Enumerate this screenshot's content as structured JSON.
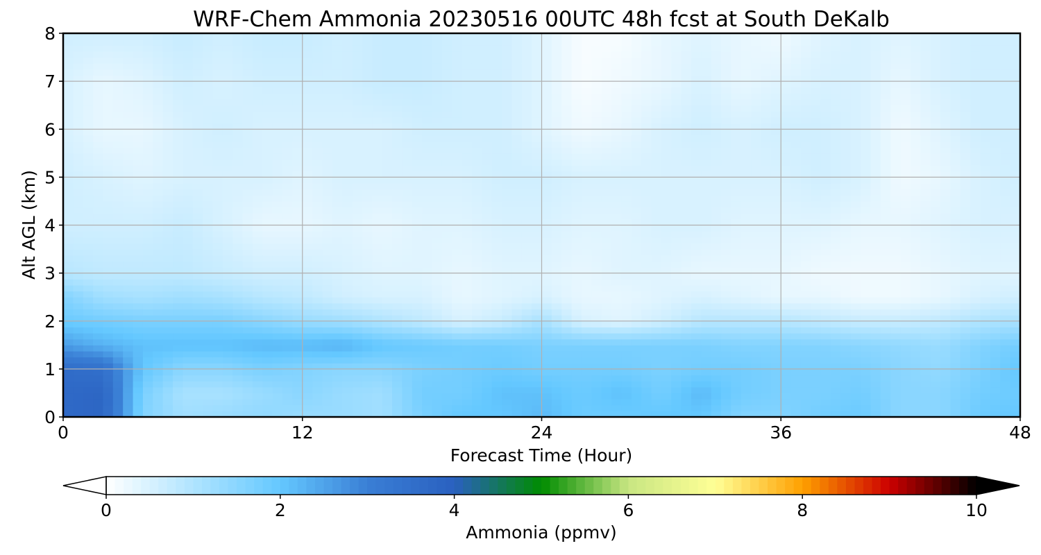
{
  "chart_data": {
    "type": "heatmap",
    "title": "WRF-Chem Ammonia  20230516 00UTC 48h fcst at South DeKalb",
    "xlabel": "Forecast Time (Hour)",
    "ylabel": "Alt AGL (km)",
    "xlim": [
      0,
      48
    ],
    "ylim": [
      0,
      8
    ],
    "xticks": [
      0,
      12,
      24,
      36,
      48
    ],
    "yticks": [
      0,
      1,
      2,
      3,
      4,
      5,
      6,
      7,
      8
    ],
    "grid": true,
    "x": [
      0,
      2,
      4,
      6,
      8,
      10,
      12,
      14,
      16,
      18,
      20,
      22,
      24,
      26,
      28,
      30,
      32,
      34,
      36,
      38,
      40,
      42,
      44,
      46,
      48
    ],
    "y": [
      0,
      0.5,
      1,
      1.5,
      2,
      2.5,
      3,
      4,
      5,
      6,
      7,
      8
    ],
    "z": [
      [
        3.7,
        3.8,
        1.6,
        1.2,
        1.3,
        1.4,
        1.3,
        1.3,
        1.2,
        1.7,
        2.0,
        2.0,
        2.2,
        1.9,
        1.9,
        2.0,
        2.0,
        1.6,
        1.6,
        1.8,
        1.9,
        1.5,
        1.5,
        1.9,
        2.0
      ],
      [
        3.7,
        3.8,
        1.7,
        1.1,
        1.1,
        1.3,
        1.5,
        1.3,
        1.2,
        1.8,
        1.8,
        2.1,
        2.1,
        1.9,
        2.1,
        1.8,
        2.2,
        1.8,
        1.7,
        1.7,
        1.8,
        1.5,
        1.5,
        1.8,
        1.9
      ],
      [
        3.6,
        3.5,
        2.0,
        1.5,
        1.5,
        1.7,
        1.6,
        1.5,
        1.5,
        1.7,
        1.8,
        1.9,
        1.8,
        1.8,
        1.8,
        1.7,
        1.8,
        1.8,
        1.7,
        1.7,
        1.7,
        1.5,
        1.4,
        1.7,
        2.0
      ],
      [
        2.6,
        2.3,
        2.1,
        2.1,
        2.1,
        2.2,
        2.2,
        2.3,
        2.0,
        1.9,
        1.8,
        1.8,
        1.7,
        1.7,
        1.7,
        1.7,
        1.7,
        1.6,
        1.6,
        1.6,
        1.5,
        1.4,
        1.3,
        1.6,
        1.8
      ],
      [
        1.9,
        1.8,
        1.7,
        1.7,
        1.7,
        1.5,
        1.3,
        1.2,
        1.0,
        0.8,
        0.5,
        0.7,
        1.1,
        0.5,
        0.4,
        0.6,
        0.9,
        0.9,
        0.9,
        0.8,
        0.7,
        0.7,
        0.8,
        1.0,
        1.1
      ],
      [
        1.6,
        1.2,
        1.1,
        1.2,
        1.1,
        0.9,
        0.8,
        0.6,
        0.5,
        0.5,
        0.3,
        0.4,
        0.5,
        0.3,
        0.3,
        0.4,
        0.5,
        0.4,
        0.3,
        0.3,
        0.2,
        0.2,
        0.3,
        0.5,
        0.6
      ],
      [
        0.9,
        0.8,
        0.8,
        0.8,
        0.7,
        0.6,
        0.6,
        0.5,
        0.4,
        0.4,
        0.3,
        0.4,
        0.4,
        0.3,
        0.4,
        0.4,
        0.3,
        0.3,
        0.3,
        0.2,
        0.2,
        0.2,
        0.3,
        0.4,
        0.4
      ],
      [
        0.6,
        0.6,
        0.6,
        0.7,
        0.5,
        0.3,
        0.3,
        0.4,
        0.3,
        0.4,
        0.4,
        0.5,
        0.5,
        0.4,
        0.4,
        0.5,
        0.5,
        0.4,
        0.4,
        0.4,
        0.3,
        0.3,
        0.4,
        0.5,
        0.5
      ],
      [
        0.6,
        0.5,
        0.4,
        0.5,
        0.5,
        0.5,
        0.4,
        0.5,
        0.5,
        0.5,
        0.5,
        0.6,
        0.6,
        0.5,
        0.5,
        0.5,
        0.5,
        0.5,
        0.5,
        0.6,
        0.5,
        0.2,
        0.3,
        0.5,
        0.6
      ],
      [
        0.5,
        0.3,
        0.3,
        0.5,
        0.6,
        0.5,
        0.5,
        0.5,
        0.5,
        0.6,
        0.6,
        0.6,
        0.4,
        0.2,
        0.3,
        0.5,
        0.6,
        0.5,
        0.6,
        0.6,
        0.5,
        0.2,
        0.4,
        0.6,
        0.6
      ],
      [
        0.5,
        0.3,
        0.4,
        0.6,
        0.5,
        0.6,
        0.6,
        0.6,
        0.7,
        0.7,
        0.6,
        0.6,
        0.4,
        0.1,
        0.2,
        0.3,
        0.5,
        0.3,
        0.4,
        0.5,
        0.5,
        0.3,
        0.5,
        0.6,
        0.6
      ],
      [
        0.6,
        0.6,
        0.6,
        0.7,
        0.6,
        0.7,
        0.7,
        0.6,
        0.7,
        0.7,
        0.6,
        0.6,
        0.4,
        0.1,
        0.1,
        0.3,
        0.4,
        0.3,
        0.2,
        0.4,
        0.5,
        0.4,
        0.5,
        0.6,
        0.6
      ]
    ],
    "colorbar": {
      "label": "Ammonia  (ppmv)",
      "min": 0,
      "max": 10,
      "ticks": [
        0,
        2,
        4,
        6,
        8,
        10
      ],
      "extend": "both",
      "colors": [
        "#ffffff",
        "#b0e4ff",
        "#64c8ff",
        "#3a7fd5",
        "#2a60c0",
        "#008c00",
        "#c8e682",
        "#ffff96",
        "#ffa000",
        "#cc0000",
        "#000000"
      ]
    }
  }
}
